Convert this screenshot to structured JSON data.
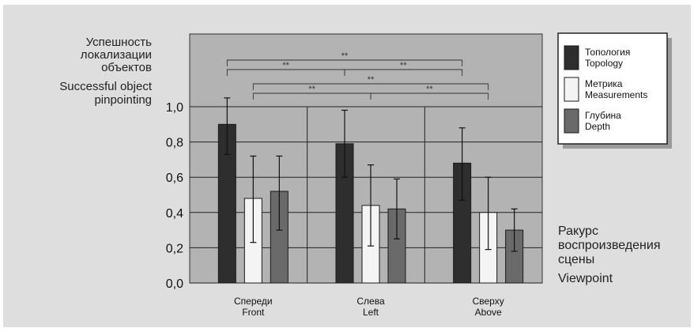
{
  "chart_data": {
    "type": "bar",
    "ylabel_ru": [
      "Успешность",
      "локализации",
      "объектов"
    ],
    "ylabel_en": [
      "Successful object",
      "pinpointing"
    ],
    "xlabel_ru": [
      "Ракурс",
      "воспроизведения",
      "сцены"
    ],
    "xlabel_en": "Viewpoint",
    "categories": [
      {
        "ru": "Спереди",
        "en": "Front"
      },
      {
        "ru": "Слева",
        "en": "Left"
      },
      {
        "ru": "Сверху",
        "en": "Above"
      }
    ],
    "ylim": [
      0,
      1.0
    ],
    "yticks": [
      "0,0",
      "0,2",
      "0,4",
      "0,6",
      "0,8",
      "1,0"
    ],
    "series": [
      {
        "name_ru": "Топология",
        "name_en": "Topology",
        "color": "#2e2e2e",
        "values": [
          0.9,
          0.79,
          0.68
        ],
        "err_low": [
          0.73,
          0.6,
          0.47
        ],
        "err_high": [
          1.05,
          0.98,
          0.88
        ]
      },
      {
        "name_ru": "Метрика",
        "name_en": "Measurements",
        "color": "#f4f4f4",
        "values": [
          0.48,
          0.44,
          0.4
        ],
        "err_low": [
          0.23,
          0.21,
          0.19
        ],
        "err_high": [
          0.72,
          0.67,
          0.6
        ]
      },
      {
        "name_ru": "Глубина",
        "name_en": "Depth",
        "color": "#6a6a6a",
        "values": [
          0.52,
          0.42,
          0.3
        ],
        "err_low": [
          0.3,
          0.25,
          0.18
        ],
        "err_high": [
          0.72,
          0.59,
          0.42
        ]
      }
    ],
    "significance": [
      {
        "from": 0,
        "to": 1,
        "series": 0,
        "label": "**"
      },
      {
        "from": 1,
        "to": 2,
        "series": 0,
        "label": "**"
      },
      {
        "from": 0,
        "to": 2,
        "series": 0,
        "label": "**"
      },
      {
        "from": 0,
        "to": 1,
        "series": 1,
        "label": "**"
      },
      {
        "from": 1,
        "to": 2,
        "series": 1,
        "label": "**"
      },
      {
        "from": 0,
        "to": 2,
        "series": 1,
        "label": "**"
      }
    ],
    "grid": true,
    "legend_position": "top-right"
  }
}
